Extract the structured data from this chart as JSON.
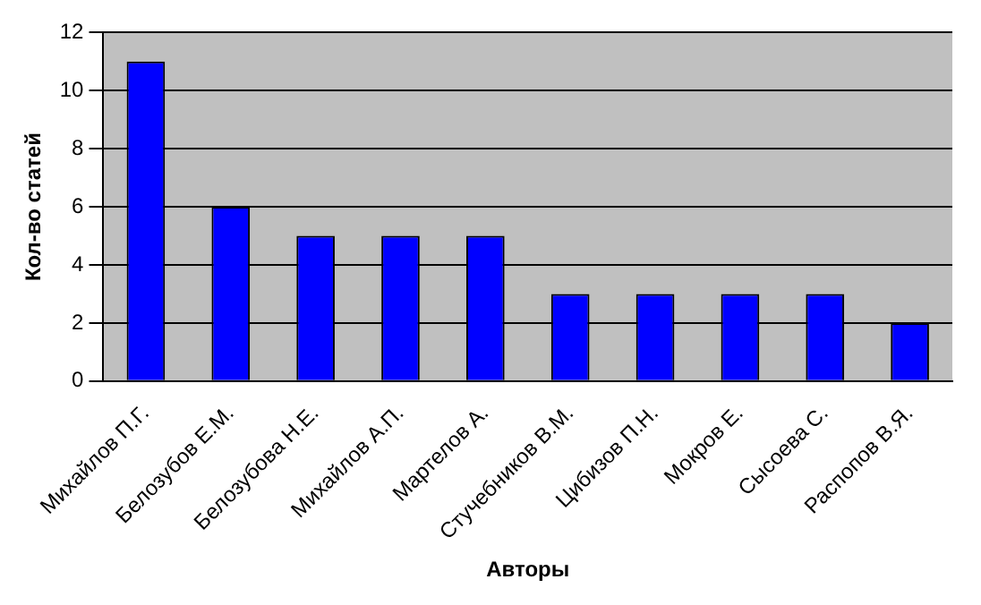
{
  "chart_data": {
    "type": "bar",
    "xlabel": "Авторы",
    "ylabel": "Кол-во статей",
    "categories": [
      "Михайлов П.Г.",
      "Белозубов Е.М.",
      "Белозубова Н.Е.",
      "Михайлов А.П.",
      "Мартелов А.",
      "Стучебников В.М.",
      "Цибизов П.Н.",
      "Мокров Е.",
      "Сысоева С.",
      "Распопов В.Я."
    ],
    "values": [
      11,
      6,
      5,
      5,
      5,
      3,
      3,
      3,
      3,
      2
    ],
    "color": "#0000ff",
    "ylim": [
      0,
      12
    ],
    "yticks": [
      0,
      2,
      4,
      6,
      8,
      10,
      12
    ],
    "grid": "y",
    "legend": false
  }
}
